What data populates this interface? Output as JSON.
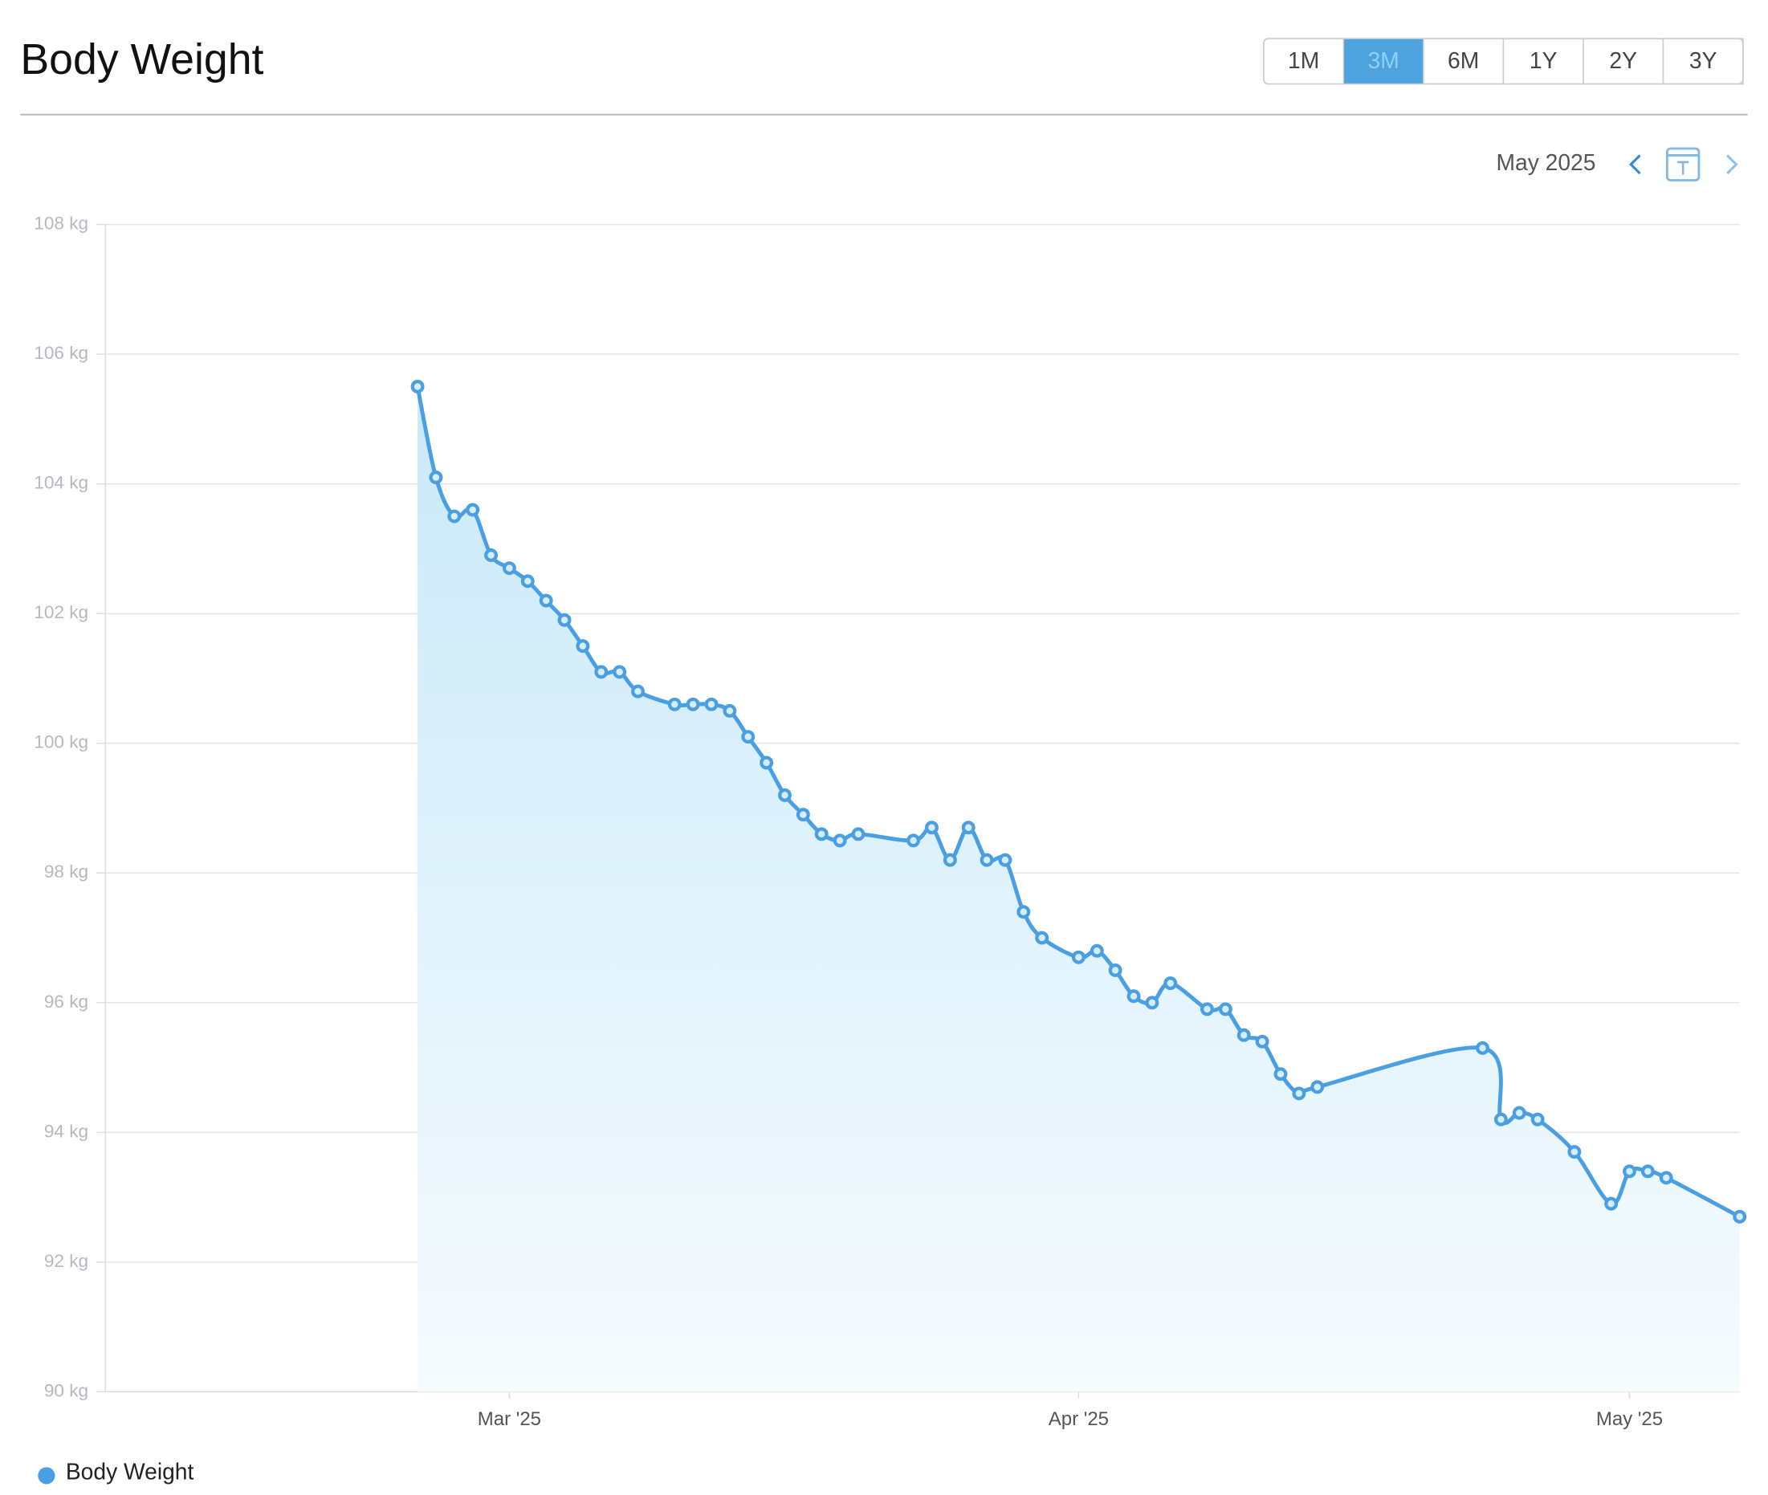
{
  "header": {
    "title": "Body Weight",
    "ranges": [
      {
        "label": "1M",
        "selected": false
      },
      {
        "label": "3M",
        "selected": true
      },
      {
        "label": "6M",
        "selected": false
      },
      {
        "label": "1Y",
        "selected": false
      },
      {
        "label": "2Y",
        "selected": false
      },
      {
        "label": "3Y",
        "selected": false
      }
    ]
  },
  "nav": {
    "month": "May 2025"
  },
  "chart_data": {
    "type": "line",
    "area": true,
    "grid": true,
    "x": [
      -5,
      -4,
      -3,
      -2,
      -1,
      0,
      1,
      2,
      3,
      4,
      5,
      6,
      7,
      9,
      10,
      11,
      12,
      13,
      14,
      15,
      16,
      17,
      18,
      19,
      22,
      23,
      24,
      25,
      26,
      27,
      28,
      29,
      31,
      32,
      33,
      34,
      35,
      36,
      38,
      39,
      40,
      41,
      42,
      43,
      44,
      53,
      54,
      55,
      56,
      58,
      60,
      61,
      62,
      63,
      67
    ],
    "series": [
      {
        "name": "Body Weight",
        "color": "#4a9fe3",
        "values": [
          105.5,
          104.1,
          103.5,
          103.6,
          102.9,
          102.7,
          102.5,
          102.2,
          101.9,
          101.5,
          101.1,
          101.1,
          100.8,
          100.6,
          100.6,
          100.6,
          100.5,
          100.1,
          99.7,
          99.2,
          98.9,
          98.6,
          98.5,
          98.6,
          98.5,
          98.7,
          98.2,
          98.7,
          98.2,
          98.2,
          97.4,
          97.0,
          96.7,
          96.8,
          96.5,
          96.1,
          96.0,
          96.3,
          95.9,
          95.9,
          95.5,
          95.4,
          94.9,
          94.6,
          94.7,
          95.3,
          94.2,
          94.3,
          94.2,
          93.7,
          92.9,
          93.4,
          93.4,
          93.3,
          92.7
        ]
      }
    ],
    "xlim": [
      -22,
      67
    ],
    "xticks": [
      {
        "value": 0,
        "label": "Mar '25"
      },
      {
        "value": 31,
        "label": "Apr '25"
      },
      {
        "value": 61,
        "label": "May '25"
      }
    ],
    "ylim": [
      90,
      108
    ],
    "yticks": [
      {
        "value": 90,
        "label": "90 kg"
      },
      {
        "value": 92,
        "label": "92 kg"
      },
      {
        "value": 94,
        "label": "94 kg"
      },
      {
        "value": 96,
        "label": "96 kg"
      },
      {
        "value": 98,
        "label": "98 kg"
      },
      {
        "value": 100,
        "label": "100 kg"
      },
      {
        "value": 102,
        "label": "102 kg"
      },
      {
        "value": 104,
        "label": "104 kg"
      },
      {
        "value": 106,
        "label": "106 kg"
      },
      {
        "value": 108,
        "label": "108 kg"
      }
    ]
  }
}
